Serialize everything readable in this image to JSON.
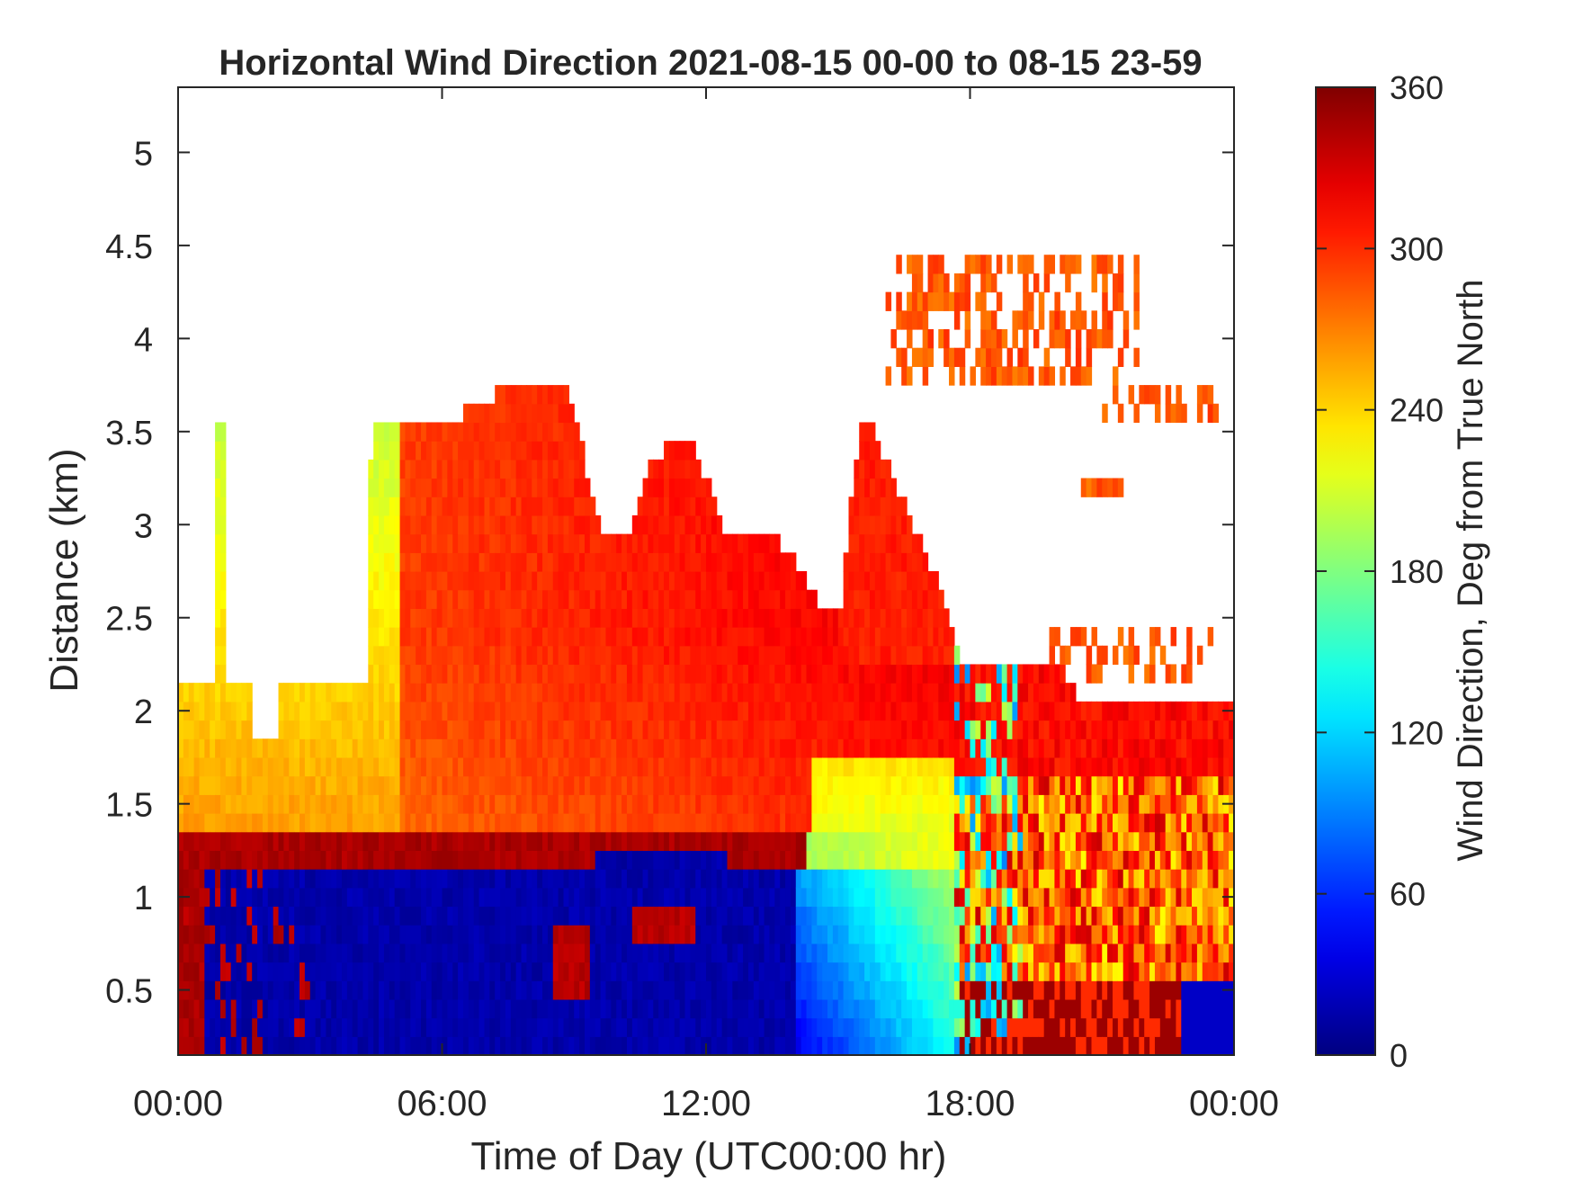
{
  "chart_data": {
    "type": "heatmap",
    "title": "Horizontal Wind Direction 2021-08-15 00-00 to 08-15 23-59",
    "xlabel": "Time of Day (UTC00:00 hr)",
    "ylabel": "Distance (km)",
    "colorbar_label": "Wind Direction, Deg from True North",
    "colormap": "jet",
    "x_ticks": [
      "00:00",
      "06:00",
      "12:00",
      "18:00",
      "00:00"
    ],
    "x_tick_values": [
      0,
      6,
      12,
      18,
      24
    ],
    "xlim": [
      0,
      24
    ],
    "y_ticks": [
      "0.5",
      "1",
      "1.5",
      "2",
      "2.5",
      "3",
      "3.5",
      "4",
      "4.5",
      "5"
    ],
    "y_tick_values": [
      0.5,
      1,
      1.5,
      2,
      2.5,
      3,
      3.5,
      4,
      4.5,
      5
    ],
    "ylim": [
      0.15,
      5.35
    ],
    "colorbar_ticks": [
      "0",
      "60",
      "120",
      "180",
      "240",
      "300",
      "360"
    ],
    "colorbar_tick_values": [
      0,
      60,
      120,
      180,
      240,
      300,
      360
    ],
    "clim": [
      0,
      360
    ],
    "time_hours": [
      0,
      1,
      2,
      3,
      4,
      5,
      6,
      7,
      8,
      9,
      10,
      11,
      12,
      13,
      14,
      15,
      16,
      17,
      18,
      19,
      20,
      21,
      22,
      23,
      24
    ],
    "distance_km": [
      0.2,
      0.3,
      0.4,
      0.5,
      0.6,
      0.7,
      0.8,
      0.9,
      1.0,
      1.1,
      1.2,
      1.3,
      1.4,
      1.5,
      1.6,
      1.7,
      1.8,
      1.9,
      2.0,
      2.1,
      2.2,
      2.3,
      2.4,
      2.5,
      2.6,
      2.7,
      2.8,
      2.9,
      3.0,
      3.1,
      3.2,
      3.3,
      3.4,
      3.5,
      3.6,
      3.7,
      3.8,
      3.9,
      4.0,
      4.1,
      4.2,
      4.3,
      4.4,
      4.5
    ],
    "wind_direction_summary": [
      {
        "layer_km": [
          0.15,
          1.1
        ],
        "period_hr": [
          0,
          14
        ],
        "direction_deg": 15
      },
      {
        "layer_km": [
          0.15,
          1.1
        ],
        "period_hr": [
          14,
          17.5
        ],
        "direction_deg": 90
      },
      {
        "layer_km": [
          1.1,
          1.35
        ],
        "period_hr": [
          0,
          14
        ],
        "direction_deg": 345
      },
      {
        "layer_km": [
          1.35,
          2.2
        ],
        "period_hr": [
          0,
          6
        ],
        "direction_deg": 250
      },
      {
        "layer_km": [
          2.2,
          3.6
        ],
        "period_hr": [
          4.5,
          14
        ],
        "direction_deg": 270
      },
      {
        "layer_km": [
          1.0,
          1.6
        ],
        "period_hr": [
          14.5,
          17.5
        ],
        "direction_deg": 200
      },
      {
        "layer_km": [
          1.6,
          2.6
        ],
        "period_hr": [
          12,
          17.5
        ],
        "direction_deg": 310
      },
      {
        "layer_km": [
          2.6,
          3.6
        ],
        "period_hr": [
          15,
          17.5
        ],
        "direction_deg": 300
      },
      {
        "layer_km": [
          0.15,
          2.1
        ],
        "period_hr": [
          18,
          24
        ],
        "direction_deg": 300
      },
      {
        "layer_km": [
          3.6,
          4.5
        ],
        "period_hr": [
          16,
          24
        ],
        "direction_deg": 290
      }
    ]
  }
}
